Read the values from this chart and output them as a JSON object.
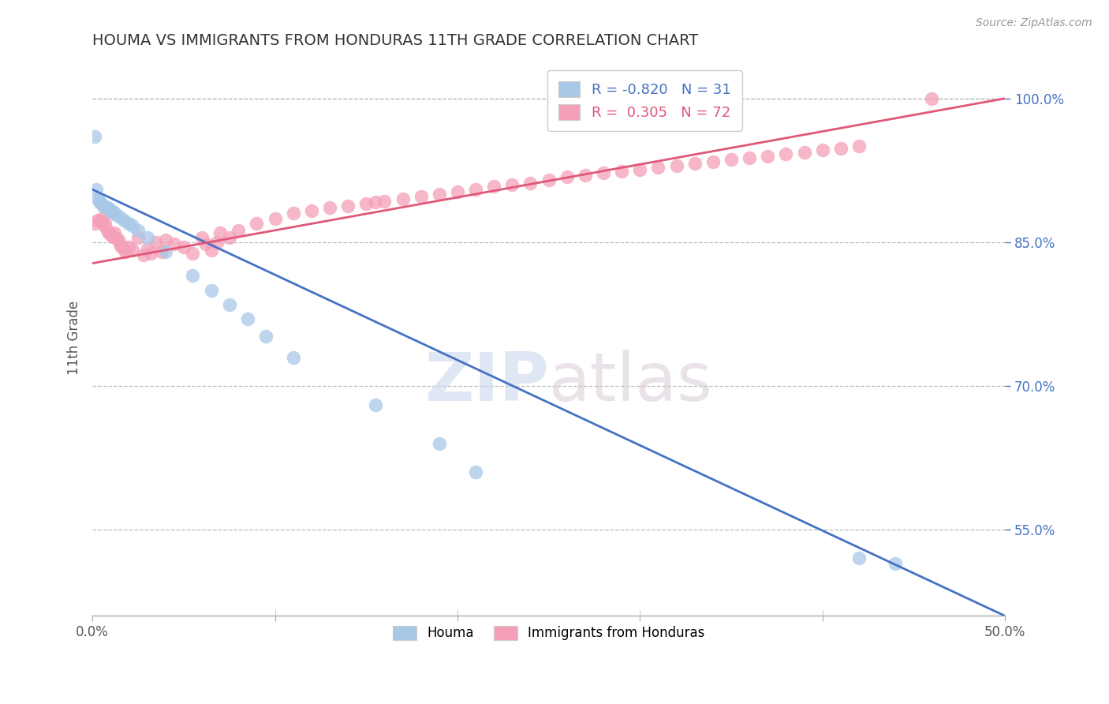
{
  "title": "HOUMA VS IMMIGRANTS FROM HONDURAS 11TH GRADE CORRELATION CHART",
  "source": "Source: ZipAtlas.com",
  "ylabel": "11th Grade",
  "xlim": [
    0.0,
    0.5
  ],
  "ylim": [
    0.46,
    1.04
  ],
  "blue_color": "#A8C8E8",
  "pink_color": "#F4A0B8",
  "blue_line_color": "#4472C4",
  "pink_line_color": "#E05878",
  "legend_R_blue": "-0.820",
  "legend_N_blue": "31",
  "legend_R_pink": "0.305",
  "legend_N_pink": "72",
  "watermark_zip": "ZIP",
  "watermark_atlas": "atlas",
  "background_color": "#FFFFFF",
  "grid_color": "#BBBBBB",
  "ytick_positions": [
    0.55,
    0.7,
    0.85,
    1.0
  ],
  "ytick_labels": [
    "55.0%",
    "70.0%",
    "85.0%",
    "100.0%"
  ],
  "blue_line_y0": 0.905,
  "blue_line_y1": 0.46,
  "pink_line_y0": 0.828,
  "pink_line_y1": 1.0,
  "blue_x": [
    0.001,
    0.002,
    0.003,
    0.004,
    0.005,
    0.006,
    0.007,
    0.008,
    0.009,
    0.01,
    0.011,
    0.012,
    0.013,
    0.015,
    0.017,
    0.02,
    0.022,
    0.025,
    0.03,
    0.04,
    0.055,
    0.065,
    0.075,
    0.085,
    0.095,
    0.11,
    0.155,
    0.19,
    0.21,
    0.42,
    0.44
  ],
  "blue_y": [
    0.96,
    0.905,
    0.895,
    0.892,
    0.89,
    0.888,
    0.887,
    0.886,
    0.885,
    0.883,
    0.882,
    0.88,
    0.879,
    0.876,
    0.873,
    0.87,
    0.867,
    0.862,
    0.855,
    0.84,
    0.815,
    0.8,
    0.785,
    0.77,
    0.752,
    0.73,
    0.68,
    0.64,
    0.61,
    0.52,
    0.515
  ],
  "pink_x": [
    0.001,
    0.003,
    0.004,
    0.005,
    0.006,
    0.007,
    0.008,
    0.009,
    0.01,
    0.011,
    0.012,
    0.013,
    0.014,
    0.015,
    0.016,
    0.017,
    0.018,
    0.02,
    0.022,
    0.025,
    0.028,
    0.03,
    0.032,
    0.035,
    0.038,
    0.04,
    0.045,
    0.05,
    0.055,
    0.06,
    0.062,
    0.065,
    0.068,
    0.07,
    0.075,
    0.08,
    0.09,
    0.1,
    0.11,
    0.12,
    0.13,
    0.14,
    0.15,
    0.155,
    0.16,
    0.17,
    0.18,
    0.19,
    0.2,
    0.21,
    0.22,
    0.23,
    0.24,
    0.25,
    0.26,
    0.27,
    0.28,
    0.29,
    0.3,
    0.31,
    0.32,
    0.33,
    0.34,
    0.35,
    0.36,
    0.37,
    0.38,
    0.39,
    0.4,
    0.41,
    0.42,
    0.46
  ],
  "pink_y": [
    0.87,
    0.873,
    0.872,
    0.875,
    0.868,
    0.87,
    0.862,
    0.86,
    0.858,
    0.856,
    0.86,
    0.855,
    0.852,
    0.848,
    0.845,
    0.843,
    0.84,
    0.845,
    0.842,
    0.855,
    0.837,
    0.843,
    0.838,
    0.85,
    0.84,
    0.852,
    0.848,
    0.845,
    0.838,
    0.855,
    0.848,
    0.842,
    0.85,
    0.86,
    0.855,
    0.862,
    0.87,
    0.875,
    0.88,
    0.883,
    0.886,
    0.888,
    0.89,
    0.892,
    0.893,
    0.895,
    0.898,
    0.9,
    0.903,
    0.905,
    0.908,
    0.91,
    0.912,
    0.915,
    0.918,
    0.92,
    0.922,
    0.924,
    0.926,
    0.928,
    0.93,
    0.932,
    0.934,
    0.936,
    0.938,
    0.94,
    0.942,
    0.944,
    0.946,
    0.948,
    0.95,
    1.0
  ]
}
